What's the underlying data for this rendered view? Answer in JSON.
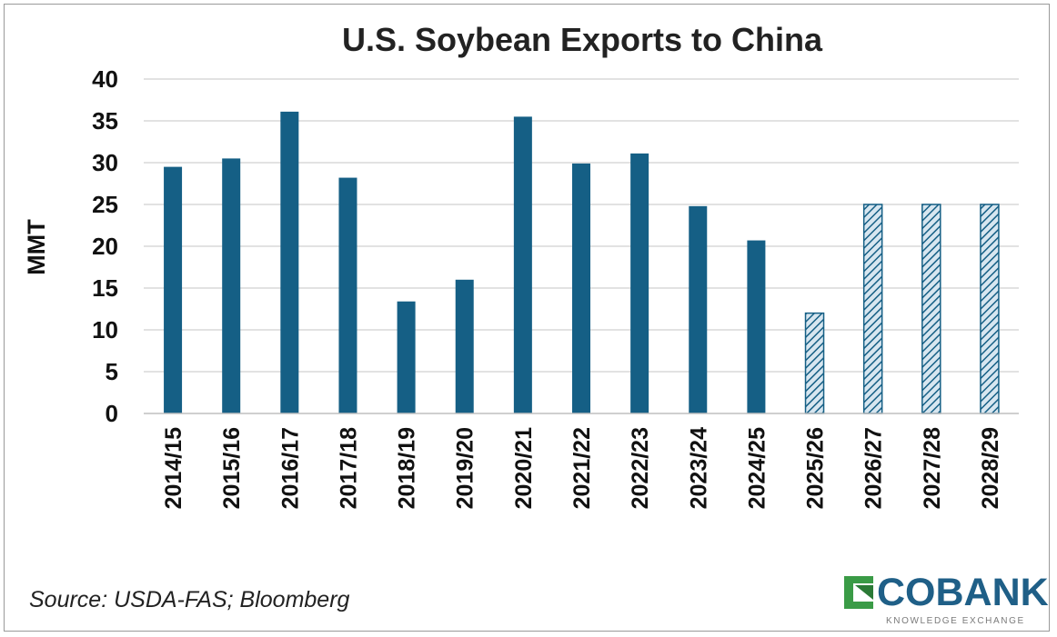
{
  "chart_data": {
    "type": "bar",
    "title": "U.S. Soybean Exports to China",
    "ylabel": "MMT",
    "xlabel": "",
    "ylim": [
      0,
      40
    ],
    "yticks": [
      0,
      5,
      10,
      15,
      20,
      25,
      30,
      35,
      40
    ],
    "grid": true,
    "categories": [
      "2014/15",
      "2015/16",
      "2016/17",
      "2017/18",
      "2018/19",
      "2019/20",
      "2020/21",
      "2021/22",
      "2022/23",
      "2023/24",
      "2024/25",
      "2025/26",
      "2026/27",
      "2027/28",
      "2028/29"
    ],
    "values": [
      29.5,
      30.5,
      36.1,
      28.2,
      13.4,
      16.0,
      35.5,
      29.9,
      31.1,
      24.8,
      20.7,
      12.0,
      25.0,
      25.0,
      25.0
    ],
    "bar_style": [
      "solid",
      "solid",
      "solid",
      "solid",
      "solid",
      "solid",
      "solid",
      "solid",
      "solid",
      "solid",
      "solid",
      "hatched",
      "hatched",
      "hatched",
      "hatched"
    ],
    "colors": {
      "bar": "#155f85",
      "hatch_bg": "#d7e6f0",
      "grid": "#d9d9d9"
    }
  },
  "source": "Source: USDA-FAS; Bloomberg",
  "logo": {
    "name": "COBANK",
    "tagline": "KNOWLEDGE EXCHANGE",
    "color": "#1f5f87",
    "mark_color": "#3a9b46"
  }
}
